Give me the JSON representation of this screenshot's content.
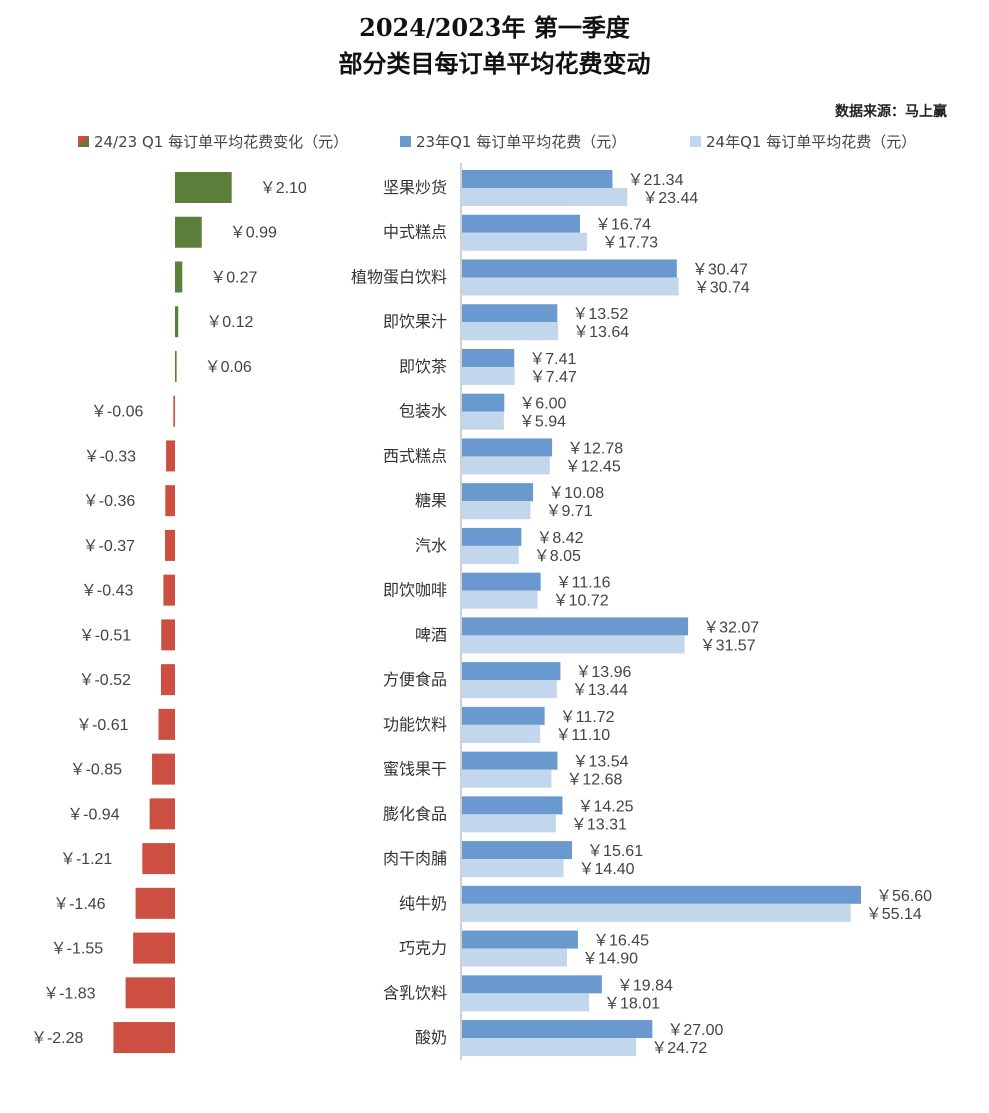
{
  "source": "数据来源：马上赢",
  "chart_data": {
    "type": "bar",
    "title": "2024/2023年 第一季度",
    "subtitle": "部分类目每订单平均花费变动",
    "orientation": "horizontal",
    "grid": false,
    "legend_position": "top",
    "value_prefix": "￥",
    "categories": [
      "坚果炒货",
      "中式糕点",
      "植物蛋白饮料",
      "即饮果汁",
      "即饮茶",
      "包装水",
      "西式糕点",
      "糖果",
      "汽水",
      "即饮咖啡",
      "啤酒",
      "方便食品",
      "功能饮料",
      "蜜饯果干",
      "膨化食品",
      "肉干肉脯",
      "纯牛奶",
      "巧克力",
      "含乳饮料",
      "酸奶"
    ],
    "series": [
      {
        "name": "24/23 Q1 每订单平均花费变化（元）",
        "positive_color": "#5b7f3b",
        "negative_color": "#cc4f42",
        "values": [
          2.1,
          0.99,
          0.27,
          0.12,
          0.06,
          -0.06,
          -0.33,
          -0.36,
          -0.37,
          -0.43,
          -0.51,
          -0.52,
          -0.61,
          -0.85,
          -0.94,
          -1.21,
          -1.46,
          -1.55,
          -1.83,
          -2.28
        ]
      },
      {
        "name": "23年Q1 每订单平均花费（元）",
        "color": "#6a99d0",
        "values": [
          21.34,
          16.74,
          30.47,
          13.52,
          7.41,
          6.0,
          12.78,
          10.08,
          8.42,
          11.16,
          32.07,
          13.96,
          11.72,
          13.54,
          14.25,
          15.61,
          56.6,
          16.45,
          19.84,
          27.0
        ]
      },
      {
        "name": "24年Q1 每订单平均花费（元）",
        "color": "#c2d6ec",
        "values": [
          23.44,
          17.73,
          30.74,
          13.64,
          7.47,
          5.94,
          12.45,
          9.71,
          8.05,
          10.72,
          31.57,
          13.44,
          11.1,
          12.68,
          13.31,
          14.4,
          55.14,
          14.9,
          18.01,
          24.72
        ]
      }
    ]
  }
}
